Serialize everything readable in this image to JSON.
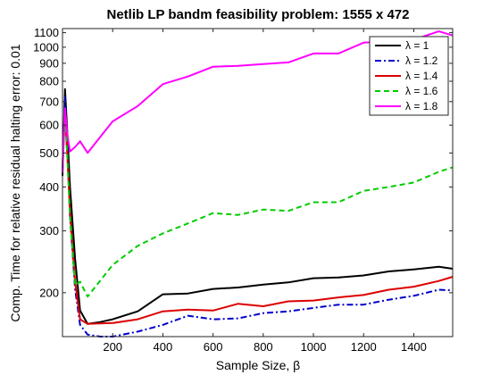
{
  "chart_data": {
    "type": "line",
    "title": "Netlib LP bandm feasibility problem: 1555 x 472",
    "xlabel": "Sample Size, β",
    "ylabel": "Comp. Time for relative residual halting error: 0.01",
    "xlim": [
      0,
      1555
    ],
    "ylim": [
      150,
      1130
    ],
    "y_scale": "log",
    "grid": false,
    "legend_position": "top-right",
    "x_ticks": [
      200,
      400,
      600,
      800,
      1000,
      1200,
      1400
    ],
    "x_tick_labels": [
      "200",
      "400",
      "600",
      "800",
      "1000",
      "1200",
      "1400"
    ],
    "y_ticks": [
      200,
      300,
      400,
      500,
      600,
      700,
      800,
      900,
      1000,
      1100
    ],
    "y_tick_labels": [
      "200",
      "300",
      "400",
      "500",
      "600",
      "700",
      "800",
      "900",
      "1000",
      "1100"
    ],
    "series": [
      {
        "name": "λ = 1",
        "color": "#000000",
        "dash": "solid",
        "points": [
          [
            0,
            430
          ],
          [
            10,
            760
          ],
          [
            20,
            560
          ],
          [
            30,
            400
          ],
          [
            50,
            250
          ],
          [
            70,
            178
          ],
          [
            100,
            163
          ],
          [
            150,
            165
          ],
          [
            200,
            168
          ],
          [
            300,
            177
          ],
          [
            400,
            198
          ],
          [
            500,
            199
          ],
          [
            600,
            205
          ],
          [
            700,
            207
          ],
          [
            800,
            211
          ],
          [
            900,
            214
          ],
          [
            1000,
            220
          ],
          [
            1100,
            221
          ],
          [
            1200,
            224
          ],
          [
            1300,
            230
          ],
          [
            1400,
            233
          ],
          [
            1500,
            237
          ],
          [
            1555,
            234
          ]
        ]
      },
      {
        "name": "λ = 1.2",
        "color": "#0000cc",
        "dash": "dash-dot",
        "points": [
          [
            0,
            450
          ],
          [
            10,
            720
          ],
          [
            20,
            500
          ],
          [
            30,
            330
          ],
          [
            50,
            205
          ],
          [
            70,
            162
          ],
          [
            100,
            152
          ],
          [
            150,
            150
          ],
          [
            200,
            150
          ],
          [
            300,
            155
          ],
          [
            400,
            162
          ],
          [
            500,
            172
          ],
          [
            600,
            168
          ],
          [
            700,
            169
          ],
          [
            800,
            175
          ],
          [
            900,
            177
          ],
          [
            1000,
            181
          ],
          [
            1100,
            185
          ],
          [
            1200,
            185
          ],
          [
            1300,
            191
          ],
          [
            1400,
            196
          ],
          [
            1500,
            204
          ],
          [
            1555,
            203
          ]
        ]
      },
      {
        "name": "λ = 1.4",
        "color": "#dd0000",
        "dash": "solid",
        "points": [
          [
            0,
            460
          ],
          [
            10,
            650
          ],
          [
            20,
            480
          ],
          [
            30,
            340
          ],
          [
            50,
            215
          ],
          [
            70,
            168
          ],
          [
            100,
            163
          ],
          [
            200,
            164
          ],
          [
            300,
            168
          ],
          [
            400,
            177
          ],
          [
            500,
            179
          ],
          [
            600,
            178
          ],
          [
            700,
            186
          ],
          [
            800,
            183
          ],
          [
            900,
            189
          ],
          [
            1000,
            190
          ],
          [
            1100,
            194
          ],
          [
            1200,
            197
          ],
          [
            1300,
            204
          ],
          [
            1400,
            208
          ],
          [
            1500,
            216
          ],
          [
            1555,
            222
          ]
        ]
      },
      {
        "name": "λ = 1.6",
        "color": "#00cc00",
        "dash": "dashed",
        "points": [
          [
            0,
            460
          ],
          [
            10,
            640
          ],
          [
            20,
            480
          ],
          [
            30,
            330
          ],
          [
            50,
            210
          ],
          [
            70,
            215
          ],
          [
            100,
            195
          ],
          [
            200,
            240
          ],
          [
            300,
            272
          ],
          [
            400,
            295
          ],
          [
            500,
            315
          ],
          [
            600,
            337
          ],
          [
            700,
            333
          ],
          [
            800,
            345
          ],
          [
            900,
            342
          ],
          [
            1000,
            362
          ],
          [
            1100,
            362
          ],
          [
            1200,
            390
          ],
          [
            1300,
            400
          ],
          [
            1400,
            412
          ],
          [
            1500,
            442
          ],
          [
            1555,
            455
          ]
        ]
      },
      {
        "name": "λ = 1.8",
        "color": "#ff00ff",
        "dash": "solid",
        "points": [
          [
            0,
            440
          ],
          [
            10,
            670
          ],
          [
            20,
            560
          ],
          [
            30,
            505
          ],
          [
            50,
            520
          ],
          [
            70,
            540
          ],
          [
            100,
            500
          ],
          [
            200,
            615
          ],
          [
            300,
            680
          ],
          [
            400,
            785
          ],
          [
            500,
            825
          ],
          [
            600,
            880
          ],
          [
            700,
            885
          ],
          [
            800,
            895
          ],
          [
            900,
            905
          ],
          [
            1000,
            960
          ],
          [
            1100,
            960
          ],
          [
            1200,
            1030
          ],
          [
            1300,
            1040
          ],
          [
            1400,
            1050
          ],
          [
            1500,
            1110
          ],
          [
            1555,
            1080
          ]
        ]
      }
    ]
  }
}
